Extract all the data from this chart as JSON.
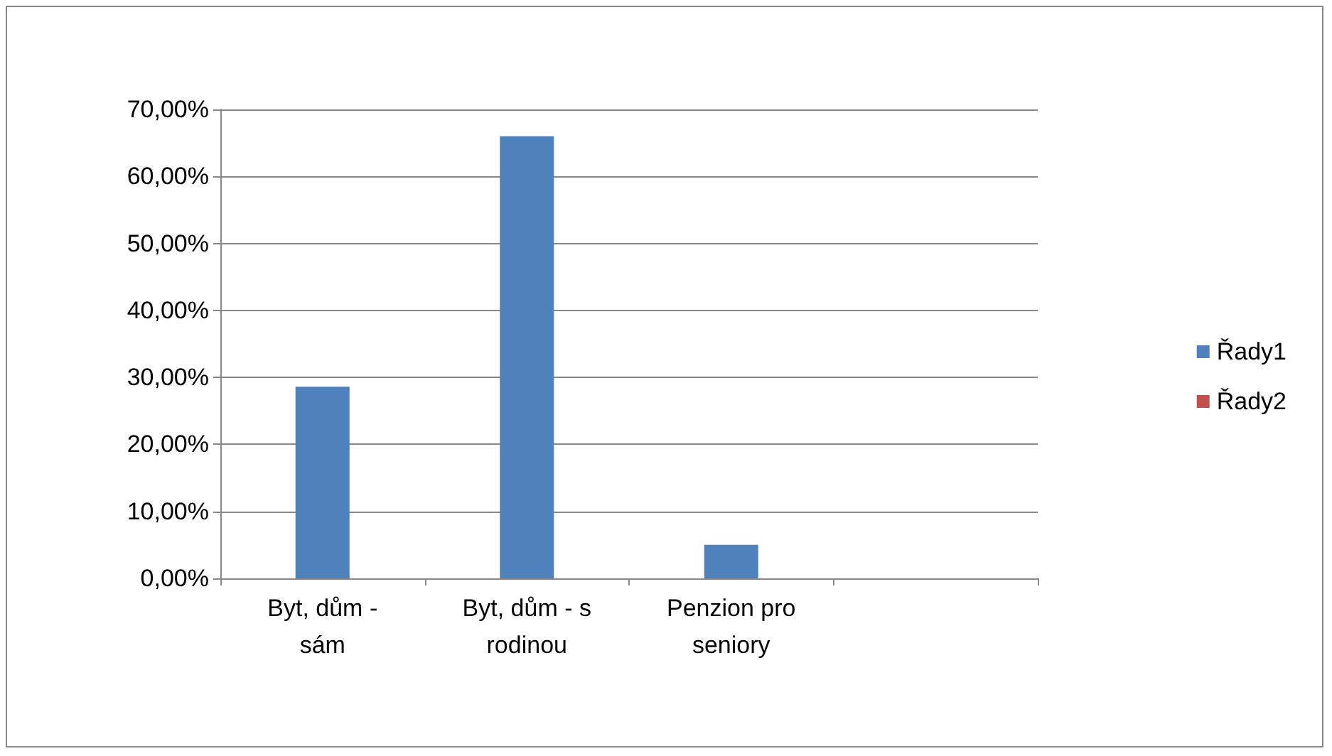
{
  "chart_data": {
    "type": "bar",
    "categories": [
      "Byt, dům - sám",
      "Byt, dům - s rodinou",
      "Penzion pro seniory",
      null
    ],
    "series": [
      {
        "name": "Řady1",
        "color": "#4f81bd",
        "values": [
          28.6,
          66,
          5,
          null
        ]
      },
      {
        "name": "Řady2",
        "color": "#c0504d",
        "values": [
          null,
          null,
          null,
          null
        ]
      }
    ],
    "ylim": [
      0,
      70
    ],
    "yticks": [
      {
        "value": 0,
        "label": "0,00%"
      },
      {
        "value": 10,
        "label": "10,00%"
      },
      {
        "value": 20,
        "label": "20,00%"
      },
      {
        "value": 30,
        "label": "30,00%"
      },
      {
        "value": 40,
        "label": "40,00%"
      },
      {
        "value": 50,
        "label": "50,00%"
      },
      {
        "value": 60,
        "label": "60,00%"
      },
      {
        "value": 70,
        "label": "70,00%"
      }
    ],
    "grid": "y",
    "legend": "right"
  }
}
